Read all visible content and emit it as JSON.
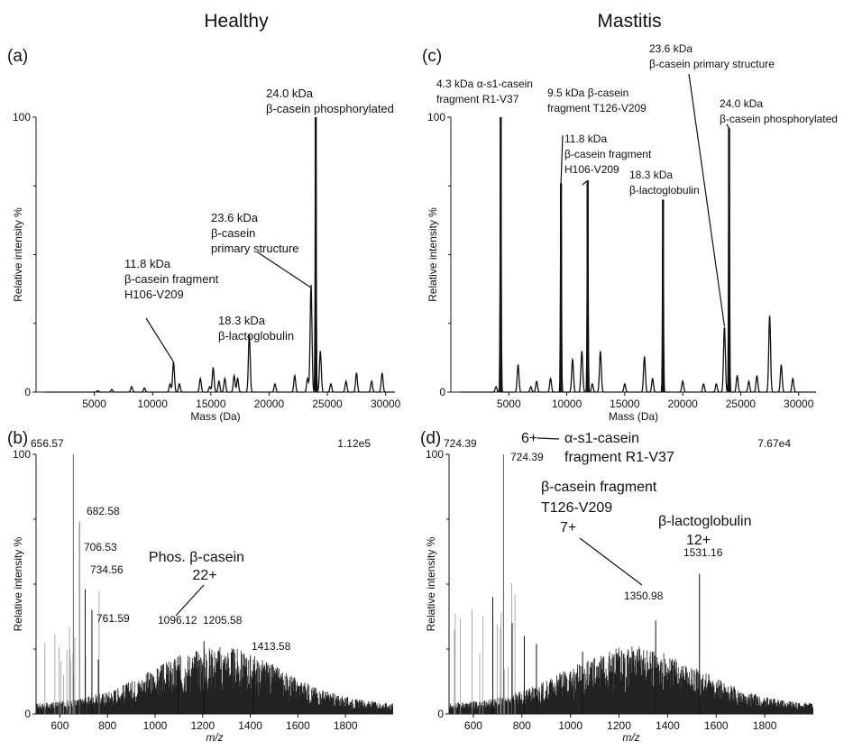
{
  "headers": {
    "left": "Healthy",
    "right": "Mastitis"
  },
  "chart_data": [
    {
      "panel": "(a)",
      "type": "line",
      "xlabel": "Mass (Da)",
      "ylabel": "Relative intensity %",
      "xlim": [
        0,
        30800
      ],
      "ylim": [
        0,
        100
      ],
      "xticks": [
        "5000",
        "10000",
        "15000",
        "20000",
        "25000",
        "30000"
      ],
      "yticks": [
        "0",
        "100"
      ],
      "peaks": [
        {
          "x": 5300,
          "y": 0.5
        },
        {
          "x": 6500,
          "y": 1
        },
        {
          "x": 8200,
          "y": 2
        },
        {
          "x": 9300,
          "y": 1.5
        },
        {
          "x": 11500,
          "y": 3
        },
        {
          "x": 11800,
          "y": 11
        },
        {
          "x": 12300,
          "y": 3
        },
        {
          "x": 14100,
          "y": 5
        },
        {
          "x": 14900,
          "y": 2
        },
        {
          "x": 15200,
          "y": 9
        },
        {
          "x": 15700,
          "y": 4
        },
        {
          "x": 16200,
          "y": 5
        },
        {
          "x": 17000,
          "y": 6
        },
        {
          "x": 17300,
          "y": 5
        },
        {
          "x": 18300,
          "y": 21
        },
        {
          "x": 20500,
          "y": 3
        },
        {
          "x": 22200,
          "y": 6
        },
        {
          "x": 23300,
          "y": 5
        },
        {
          "x": 23600,
          "y": 39
        },
        {
          "x": 24000,
          "y": 100
        },
        {
          "x": 24400,
          "y": 15
        },
        {
          "x": 25300,
          "y": 3
        },
        {
          "x": 26600,
          "y": 4
        },
        {
          "x": 27500,
          "y": 7
        },
        {
          "x": 28800,
          "y": 4
        },
        {
          "x": 29700,
          "y": 7
        }
      ],
      "annotations": [
        {
          "lines": [
            "24.0 kDa",
            "β-casein phosphorylated"
          ]
        },
        {
          "lines": [
            "23.6 kDa",
            "β-casein",
            "primary structure"
          ]
        },
        {
          "lines": [
            "11.8 kDa",
            "β-casein fragment",
            "H106-V209"
          ]
        },
        {
          "lines": [
            "18.3 kDa",
            "β-lactoglobulin"
          ]
        }
      ]
    },
    {
      "panel": "(b)",
      "type": "line",
      "xlabel": "m/z",
      "ylabel": "Relative intensity %",
      "xlim": [
        500,
        2000
      ],
      "ylim": [
        0,
        100
      ],
      "xticks": [
        "600",
        "800",
        "1000",
        "1200",
        "1400",
        "1600",
        "1800"
      ],
      "yticks": [
        "0",
        "100"
      ],
      "base_peak": "656.57",
      "intensity": "1.12e5",
      "peaks": [
        {
          "x": 656.57,
          "y": 100
        },
        {
          "x": 682.58,
          "y": 74
        },
        {
          "x": 706.53,
          "y": 48
        },
        {
          "x": 734.56,
          "y": 40
        },
        {
          "x": 761.59,
          "y": 21
        },
        {
          "x": 1096.12,
          "y": 22
        },
        {
          "x": 1205.58,
          "y": 28
        },
        {
          "x": 1413.58,
          "y": 17
        }
      ],
      "labels": [
        "682.58",
        "706.53",
        "734.56",
        "761.59",
        "1096.12",
        "1205.58",
        "1413.58"
      ],
      "annotation": {
        "lines": [
          "Phos. β-casein",
          "22+"
        ]
      }
    },
    {
      "panel": "(c)",
      "type": "line",
      "xlabel": "Mass (Da)",
      "ylabel": "Relative intensity %",
      "xlim": [
        0,
        31500
      ],
      "ylim": [
        0,
        100
      ],
      "xticks": [
        "5000",
        "10000",
        "15000",
        "20000",
        "25000",
        "30000"
      ],
      "yticks": [
        "0",
        "100"
      ],
      "peaks": [
        {
          "x": 3900,
          "y": 2
        },
        {
          "x": 4300,
          "y": 100
        },
        {
          "x": 5800,
          "y": 10
        },
        {
          "x": 6900,
          "y": 2
        },
        {
          "x": 7400,
          "y": 4
        },
        {
          "x": 8600,
          "y": 5
        },
        {
          "x": 9500,
          "y": 76
        },
        {
          "x": 10500,
          "y": 12
        },
        {
          "x": 11300,
          "y": 15
        },
        {
          "x": 11800,
          "y": 77
        },
        {
          "x": 12200,
          "y": 3
        },
        {
          "x": 12900,
          "y": 15
        },
        {
          "x": 15000,
          "y": 3
        },
        {
          "x": 16700,
          "y": 13
        },
        {
          "x": 17400,
          "y": 5
        },
        {
          "x": 18300,
          "y": 70
        },
        {
          "x": 20000,
          "y": 4
        },
        {
          "x": 21800,
          "y": 3
        },
        {
          "x": 22900,
          "y": 3
        },
        {
          "x": 23600,
          "y": 24
        },
        {
          "x": 24000,
          "y": 96
        },
        {
          "x": 24700,
          "y": 6
        },
        {
          "x": 25700,
          "y": 4
        },
        {
          "x": 26400,
          "y": 6
        },
        {
          "x": 27500,
          "y": 28
        },
        {
          "x": 28500,
          "y": 10
        },
        {
          "x": 29500,
          "y": 5
        }
      ],
      "annotations": [
        {
          "lines": [
            "4.3 kDa α-s1-casein",
            "fragment  R1-V37"
          ]
        },
        {
          "lines": [
            "9.5 kDa β-casein",
            "fragment  T126-V209"
          ]
        },
        {
          "lines": [
            "11.8 kDa",
            "β-casein fragment",
            "H106-V209"
          ]
        },
        {
          "lines": [
            "18.3 kDa",
            "β-lactoglobulin"
          ]
        },
        {
          "lines": [
            "23.6 kDa",
            "β-casein primary structure"
          ]
        },
        {
          "lines": [
            "24.0 kDa",
            "β-casein phosphorylated"
          ]
        }
      ]
    },
    {
      "panel": "(d)",
      "type": "line",
      "xlabel": "m/z",
      "ylabel": "Relative intensity %",
      "xlim": [
        500,
        2000
      ],
      "ylim": [
        0,
        100
      ],
      "xticks": [
        "600",
        "800",
        "1000",
        "1200",
        "1400",
        "1600",
        "1800"
      ],
      "yticks": [
        "0",
        "100"
      ],
      "base_peak": "724.39",
      "intensity": "7.67e4",
      "peaks": [
        {
          "x": 724.39,
          "y": 100
        },
        {
          "x": 680,
          "y": 45
        },
        {
          "x": 760,
          "y": 35
        },
        {
          "x": 810,
          "y": 30
        },
        {
          "x": 860,
          "y": 27
        },
        {
          "x": 1050,
          "y": 24
        },
        {
          "x": 1350.98,
          "y": 36
        },
        {
          "x": 1531.16,
          "y": 54
        }
      ],
      "labels": [
        "1350.98",
        "1531.16"
      ],
      "annotations": [
        {
          "lines": [
            "6+",
            "α-s1-casein",
            "fragment  R1-V37"
          ]
        },
        {
          "lines": [
            "β-casein fragment",
            "T126-V209",
            "7+"
          ]
        },
        {
          "lines": [
            "β-lactoglobulin",
            "12+"
          ]
        }
      ]
    }
  ]
}
